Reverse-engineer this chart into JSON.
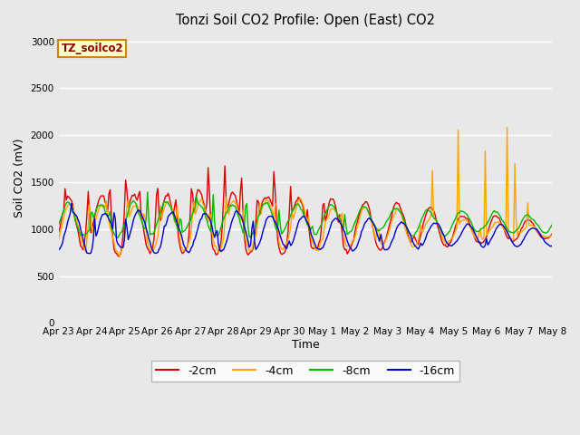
{
  "title": "Tonzi Soil CO2 Profile: Open (East) CO2",
  "xlabel": "Time",
  "ylabel": "Soil CO2 (mV)",
  "ylim": [
    0,
    3100
  ],
  "yticks": [
    0,
    500,
    1000,
    1500,
    2000,
    2500,
    3000
  ],
  "background_color": "#e8e8e8",
  "plot_bg_color": "#e8e8e8",
  "grid_color": "#ffffff",
  "series": [
    {
      "label": "-2cm",
      "color": "#dd0000"
    },
    {
      "label": "-4cm",
      "color": "#ffa500"
    },
    {
      "label": "-8cm",
      "color": "#00bb00"
    },
    {
      "label": "-16cm",
      "color": "#0000cc"
    }
  ],
  "legend_label": "TZ_soilco2",
  "legend_bg": "#ffffcc",
  "legend_border": "#cc8800",
  "tick_labels": [
    "Apr 23",
    "Apr 24",
    "Apr 25",
    "Apr 26",
    "Apr 27",
    "Apr 28",
    "Apr 29",
    "Apr 30",
    "May 1",
    "May 2",
    "May 3",
    "May 4",
    "May 5",
    "May 6",
    "May 7",
    "May 8"
  ],
  "tick_positions": [
    0,
    1,
    2,
    3,
    4,
    5,
    6,
    7,
    8,
    9,
    10,
    11,
    12,
    13,
    14,
    15
  ]
}
